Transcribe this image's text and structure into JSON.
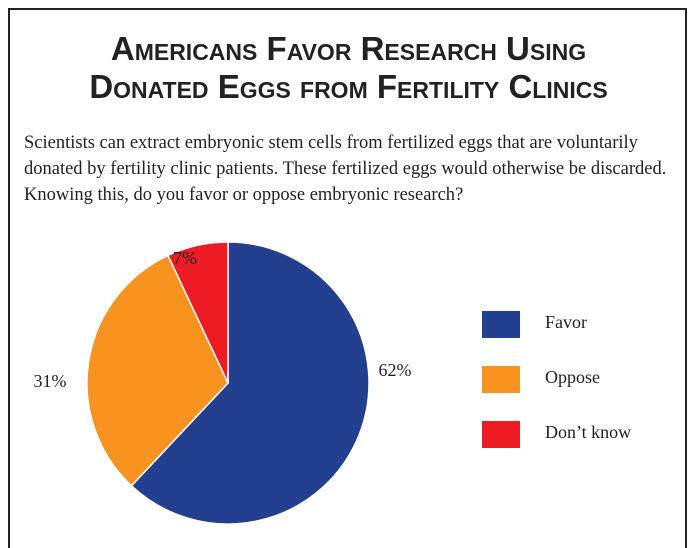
{
  "chart_data": {
    "type": "pie",
    "title": [
      "Americans Favor Research Using",
      "Donated Eggs from Fertility Clinics"
    ],
    "subtitle": "Scientists can extract embryonic stem cells from fertilized eggs that are voluntarily donated by fertility clinic patients. These fertilized eggs would otherwise be discarded. Knowing this, do you favor or oppose embryonic research?",
    "categories": [
      "Favor",
      "Oppose",
      "Don’t know"
    ],
    "values": [
      62,
      31,
      7
    ],
    "value_labels": [
      "62%",
      "31%",
      "7%"
    ],
    "colors": [
      "#233f8f",
      "#f7931e",
      "#ed1c24"
    ],
    "legend": "right"
  }
}
